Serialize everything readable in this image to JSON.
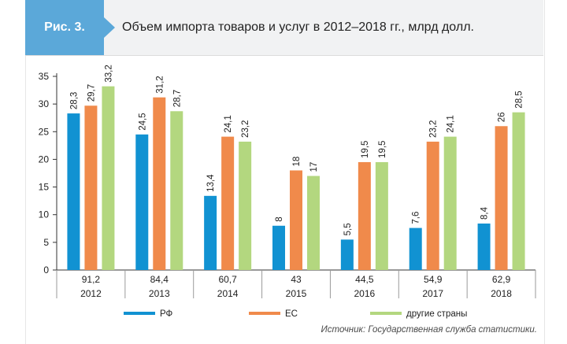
{
  "header": {
    "figure_label": "Рис. 3.",
    "title": "Объем импорта товаров и услуг в 2012–2018 гг., млрд долл."
  },
  "source_note": "Источник: Государственная служба статистики.",
  "colors": {
    "РФ": "#1192d2",
    "ЕС": "#f08a4b",
    "другие страны": "#b3d77f",
    "header_tag": "#5ba8d9",
    "header_bg": "#f1f2f3"
  },
  "chart_data": {
    "type": "bar",
    "categories": [
      "2012",
      "2013",
      "2014",
      "2015",
      "2016",
      "2017",
      "2018"
    ],
    "category_totals": [
      "91,2",
      "84,4",
      "60,7",
      "43",
      "44,5",
      "54,9",
      "62,9"
    ],
    "series": [
      {
        "name": "РФ",
        "values": [
          28.3,
          24.5,
          13.4,
          8,
          5.5,
          7.6,
          8.4
        ],
        "labels": [
          "28,3",
          "24,5",
          "13,4",
          "8",
          "5,5",
          "7,6",
          "8,4"
        ]
      },
      {
        "name": "ЕС",
        "values": [
          29.7,
          31.2,
          24.1,
          18,
          19.5,
          23.2,
          26
        ],
        "labels": [
          "29,7",
          "31,2",
          "24,1",
          "18",
          "19,5",
          "23,2",
          "26"
        ]
      },
      {
        "name": "другие страны",
        "values": [
          33.2,
          28.7,
          23.2,
          17,
          19.5,
          24.1,
          28.5
        ],
        "labels": [
          "33,2",
          "28,7",
          "23,2",
          "17",
          "19,5",
          "24,1",
          "28,5"
        ]
      }
    ],
    "ylim": [
      0,
      35
    ],
    "yticks": [
      0,
      5,
      10,
      15,
      20,
      25,
      30,
      35
    ],
    "grid": false,
    "legend_position": "bottom"
  }
}
